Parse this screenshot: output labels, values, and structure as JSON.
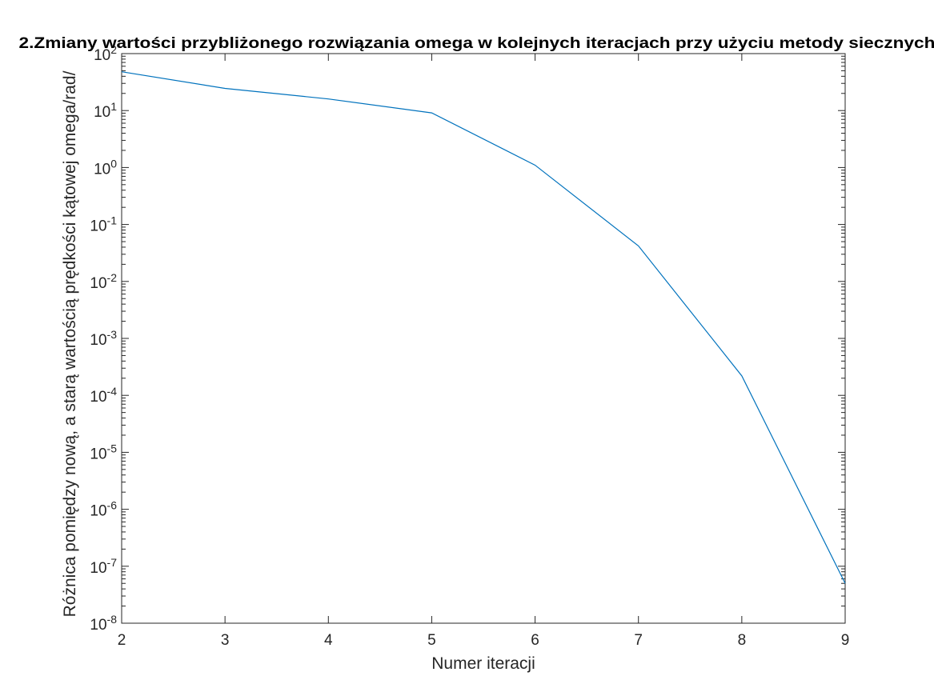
{
  "colors": {
    "series": "#0072BD",
    "axis": "#262626",
    "background": "#ffffff"
  },
  "chart_data": {
    "type": "line",
    "title": "2.Zmiany wartości przybliżonego rozwiązania omega w kolejnych iteracjach przy użyciu metody siecznych",
    "xlabel": "Numer iteracji",
    "ylabel": "Różnica pomiędzy nową, a starą wartością prędkości kątowej omega/rad/",
    "xlim": [
      2,
      9
    ],
    "ylim": [
      1e-08,
      100
    ],
    "yscale": "log",
    "grid": false,
    "x_ticks": [
      "2",
      "3",
      "4",
      "5",
      "6",
      "7",
      "8",
      "9"
    ],
    "y_ticks": [
      {
        "base": "10",
        "exp": "-8"
      },
      {
        "base": "10",
        "exp": "-7"
      },
      {
        "base": "10",
        "exp": "-6"
      },
      {
        "base": "10",
        "exp": "-5"
      },
      {
        "base": "10",
        "exp": "-4"
      },
      {
        "base": "10",
        "exp": "-3"
      },
      {
        "base": "10",
        "exp": "-2"
      },
      {
        "base": "10",
        "exp": "-1"
      },
      {
        "base": "10",
        "exp": "0"
      },
      {
        "base": "10",
        "exp": "1"
      },
      {
        "base": "10",
        "exp": "2"
      }
    ],
    "x": [
      2,
      3,
      4,
      5,
      6,
      7,
      8,
      9
    ],
    "series": [
      {
        "values": [
          48,
          24.5,
          16,
          9.1,
          1.1,
          0.042,
          0.00022,
          5e-08
        ]
      }
    ]
  }
}
